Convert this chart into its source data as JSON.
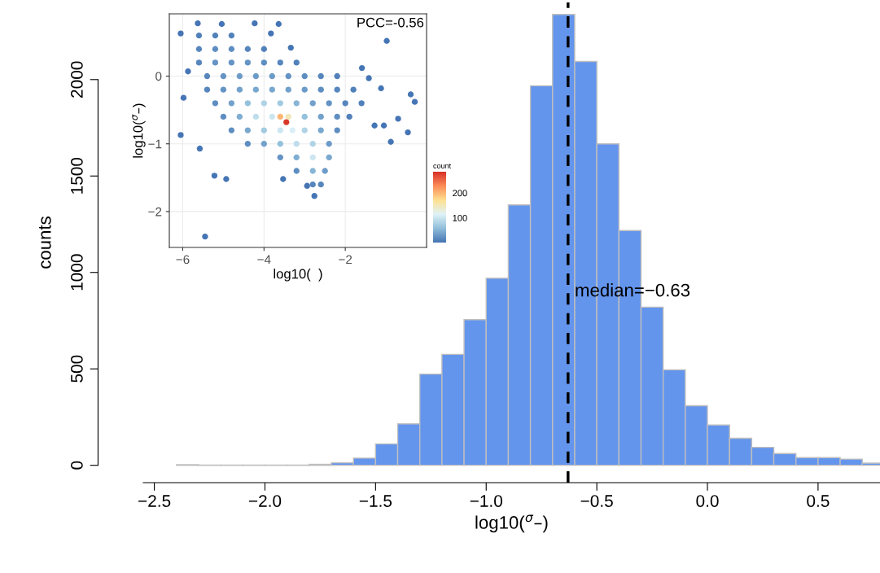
{
  "chart_data": [
    {
      "type": "histogram",
      "xlabel": "log10($^{σ}$–)",
      "ylabel": "counts",
      "bins": [
        -2.4,
        -2.3,
        -2.2,
        -2.1,
        -2.0,
        -1.9,
        -1.8,
        -1.7,
        -1.6,
        -1.5,
        -1.4,
        -1.3,
        -1.2,
        -1.1,
        -1.0,
        -0.9,
        -0.8,
        -0.7,
        -0.6,
        -0.5,
        -0.4,
        -0.3,
        -0.2,
        -0.1,
        0.0,
        0.1,
        0.2,
        0.3,
        0.4,
        0.5,
        0.6,
        0.7,
        0.8
      ],
      "values": [
        3,
        1,
        1,
        1,
        1,
        1,
        5,
        13,
        37,
        111,
        215,
        473,
        575,
        755,
        970,
        1350,
        1968,
        2338,
        2094,
        1667,
        1217,
        820,
        495,
        309,
        209,
        140,
        93,
        61,
        40,
        40,
        32,
        11
      ],
      "color": "#6495ed",
      "xlim": [
        -2.55,
        0.78
      ],
      "xticks": [
        {
          "value": -2.5,
          "label": "−2.5"
        },
        {
          "value": -2.0,
          "label": "−2.0"
        },
        {
          "value": -1.5,
          "label": "−1.5"
        },
        {
          "value": -1.0,
          "label": "−1.0"
        },
        {
          "value": -0.5,
          "label": "−0.5"
        },
        {
          "value": 0.0,
          "label": "0.0"
        },
        {
          "value": 0.5,
          "label": "0.5"
        }
      ],
      "ylim": [
        -90,
        2400
      ],
      "yticks": [
        0,
        500,
        1000,
        1500,
        2000
      ],
      "ref_lines": [
        {
          "axis": "x",
          "value": -0.63,
          "color": "#000000",
          "line_style": "dashed"
        }
      ],
      "annotations": [
        {
          "text": "median=−0.63",
          "x": -0.63,
          "y": 900
        }
      ],
      "grid": false,
      "legend": false
    },
    {
      "type": "scatter",
      "xlabel": "log10(  )",
      "ylabel": "log10($^{σ}$–)",
      "clabel": "count",
      "x": [
        -6.05,
        -5.98,
        -5.45,
        -5.58,
        -5.22,
        -4.93,
        -3.53,
        -0.98,
        -1.59,
        -0.39,
        -0.29,
        -0.46,
        -0.88,
        -0.7,
        -2.76,
        -2.94,
        -6.05,
        -5.63,
        -5.04,
        -4.23,
        -3.64,
        -1.42,
        -1.12,
        -1.28,
        -1.05,
        -3.83,
        -3.34,
        -5.87,
        -5.6,
        -5.2,
        -4.8,
        -5.6,
        -5.2,
        -4.8,
        -4.4,
        -4.0,
        -5.6,
        -5.2,
        -4.8,
        -4.4,
        -4.0,
        -3.6,
        -3.2,
        -5.4,
        -5.0,
        -4.6,
        -4.2,
        -3.8,
        -3.4,
        -3.0,
        -2.6,
        -2.2,
        -5.4,
        -5.0,
        -4.6,
        -4.2,
        -3.8,
        -3.4,
        -3.0,
        -2.6,
        -2.2,
        -1.8,
        -5.2,
        -4.8,
        -4.4,
        -4.0,
        -3.6,
        -3.2,
        -2.8,
        -2.4,
        -2.0,
        -1.6,
        -5.0,
        -4.6,
        -4.2,
        -3.8,
        -3.6,
        -3.4,
        -3.0,
        -2.6,
        -2.2,
        -1.9,
        -4.8,
        -4.4,
        -4.0,
        -3.6,
        -3.3,
        -3.0,
        -2.6,
        -2.2,
        -4.4,
        -4.0,
        -3.6,
        -3.2,
        -2.8,
        -2.4,
        -3.6,
        -3.2,
        -2.8,
        -2.4,
        -3.2,
        -2.8,
        -2.5,
        -2.8,
        -2.6,
        -3.45
      ],
      "values": [
        -0.87,
        -0.32,
        -2.37,
        -1.07,
        -1.47,
        -1.52,
        -1.52,
        0.52,
        0.12,
        -0.27,
        -0.38,
        -0.83,
        -0.97,
        -0.63,
        -1.77,
        -1.62,
        0.63,
        0.78,
        0.77,
        0.78,
        0.77,
        -0.03,
        -0.18,
        -0.73,
        -0.73,
        0.63,
        0.42,
        0.07,
        0.6,
        0.6,
        0.6,
        0.4,
        0.4,
        0.4,
        0.4,
        0.4,
        0.2,
        0.2,
        0.2,
        0.2,
        0.2,
        0.2,
        0.2,
        0.0,
        0.0,
        0.0,
        0.0,
        0.0,
        0.0,
        0.0,
        0.0,
        0.0,
        -0.2,
        -0.2,
        -0.2,
        -0.2,
        -0.2,
        -0.2,
        -0.2,
        -0.2,
        -0.2,
        -0.2,
        -0.4,
        -0.4,
        -0.4,
        -0.4,
        -0.4,
        -0.4,
        -0.4,
        -0.4,
        -0.4,
        -0.4,
        -0.6,
        -0.6,
        -0.6,
        -0.6,
        -0.6,
        -0.6,
        -0.6,
        -0.6,
        -0.6,
        -0.6,
        -0.8,
        -0.8,
        -0.8,
        -0.8,
        -0.8,
        -0.8,
        -0.8,
        -0.8,
        -1.0,
        -1.0,
        -1.0,
        -1.0,
        -1.0,
        -1.0,
        -1.2,
        -1.2,
        -1.2,
        -1.2,
        -1.4,
        -1.4,
        -1.4,
        -1.6,
        -1.6,
        -0.68
      ],
      "cvalues": [
        1,
        1,
        1,
        1,
        1,
        1,
        1,
        1,
        1,
        1,
        1,
        1,
        1,
        1,
        1,
        1,
        1,
        1,
        1,
        1,
        1,
        1,
        1,
        1,
        1,
        1,
        1,
        1,
        10,
        10,
        10,
        15,
        20,
        20,
        15,
        10,
        15,
        25,
        25,
        25,
        20,
        15,
        10,
        15,
        25,
        30,
        30,
        30,
        25,
        20,
        15,
        10,
        15,
        25,
        35,
        40,
        40,
        35,
        30,
        20,
        15,
        10,
        20,
        35,
        60,
        80,
        70,
        50,
        35,
        25,
        15,
        10,
        20,
        45,
        90,
        100,
        200,
        150,
        60,
        35,
        20,
        10,
        20,
        40,
        70,
        100,
        110,
        80,
        40,
        20,
        20,
        35,
        60,
        90,
        80,
        30,
        25,
        45,
        100,
        40,
        20,
        50,
        30,
        15,
        15,
        280
      ],
      "clim": [
        1,
        285
      ],
      "cticks": [
        100,
        200
      ],
      "xlim": [
        -6.33,
        0.0
      ],
      "xticks": [
        {
          "value": -6,
          "label": "−6"
        },
        {
          "value": -4,
          "label": "−4"
        },
        {
          "value": -2,
          "label": "−2"
        }
      ],
      "ylim": [
        -2.53,
        0.92
      ],
      "yticks": [
        {
          "value": 0,
          "label": "0"
        },
        {
          "value": -1,
          "label": "−1"
        },
        {
          "value": -2,
          "label": "−2"
        }
      ],
      "annotations": [
        "PCC=-0.56"
      ],
      "marker": "circle",
      "grid": true,
      "legend": false
    }
  ]
}
